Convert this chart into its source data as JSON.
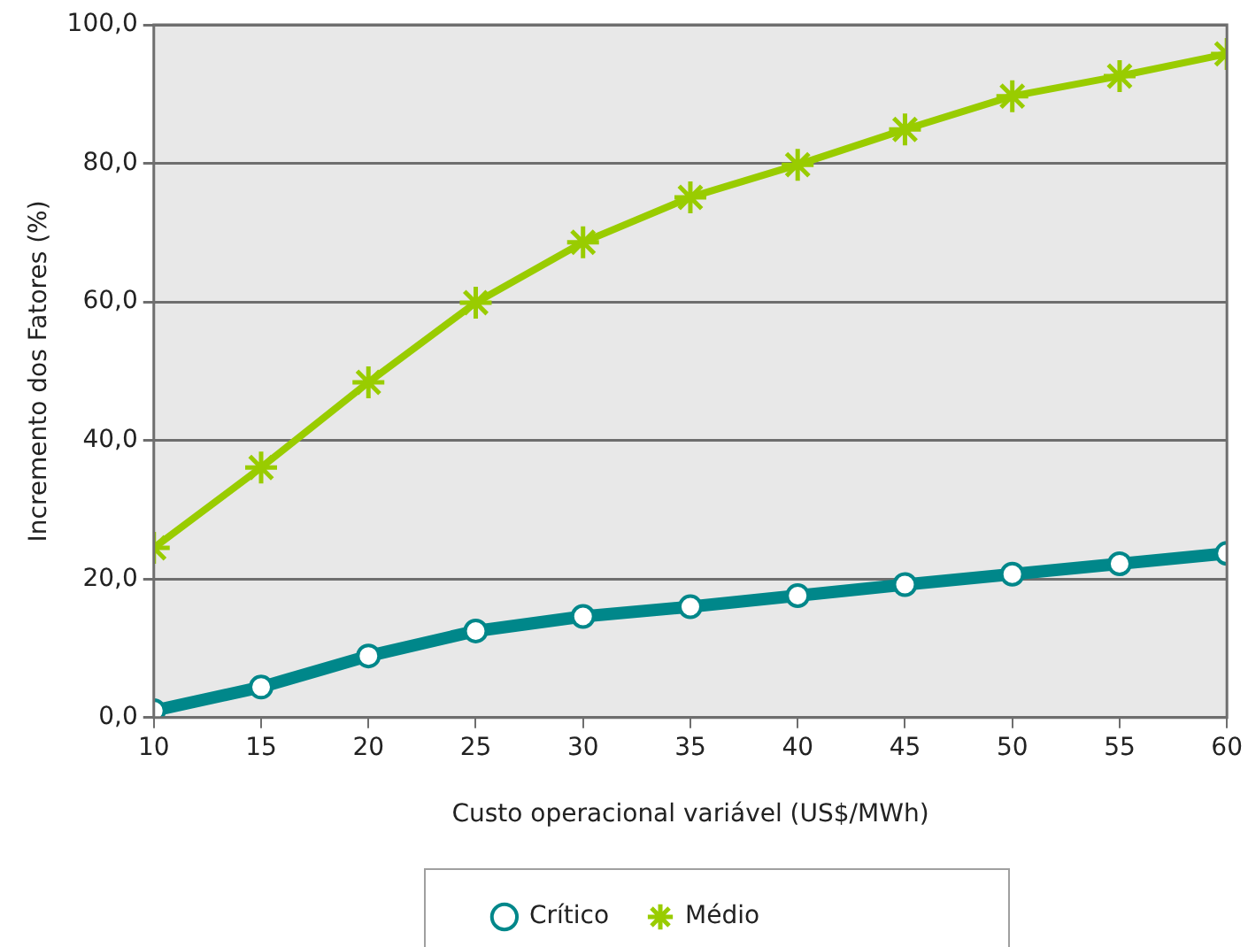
{
  "chart_data": {
    "type": "line",
    "xlabel": "Custo operacional variável (US$/MWh)",
    "ylabel": "Incremento dos Fatores (%)",
    "x": [
      10,
      15,
      20,
      25,
      30,
      35,
      40,
      45,
      50,
      55,
      60
    ],
    "series": [
      {
        "name": "Crítico",
        "color": "#00878a",
        "marker": "circle",
        "values": [
          1.0,
          4.4,
          8.9,
          12.5,
          14.6,
          16.0,
          17.6,
          19.2,
          20.7,
          22.2,
          23.7
        ]
      },
      {
        "name": "Médio",
        "color": "#99cc00",
        "marker": "cross",
        "values": [
          24.5,
          36.1,
          48.4,
          59.9,
          68.6,
          75.1,
          79.8,
          84.9,
          89.7,
          92.6,
          95.8
        ]
      }
    ],
    "xlim": [
      10,
      60
    ],
    "xticks": [
      10,
      15,
      20,
      25,
      30,
      35,
      40,
      45,
      50,
      55,
      60
    ],
    "ylim": [
      0,
      100
    ],
    "yticks": [
      {
        "value": 0,
        "label": "0,0"
      },
      {
        "value": 20,
        "label": "20,0"
      },
      {
        "value": 40,
        "label": "40,0"
      },
      {
        "value": 60,
        "label": "60,0"
      },
      {
        "value": 80,
        "label": "80,0"
      },
      {
        "value": 100,
        "label": "100,0"
      }
    ],
    "grid": "y",
    "legend": "bottom",
    "line_style": "solid"
  }
}
